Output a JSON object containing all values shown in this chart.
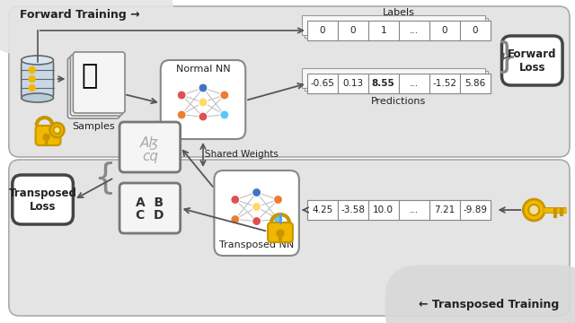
{
  "white": "#ffffff",
  "panel_gray": "#e0e0e0",
  "panel_edge": "#aaaaaa",
  "box_edge": "#888888",
  "text_color": "#222222",
  "gold": "#f0b800",
  "gold_dark": "#c89600",
  "blue_node": "#4472c4",
  "red_node": "#e05050",
  "orange_node": "#ed7d31",
  "yellow_node": "#ffd966",
  "cyan_node": "#5bc8f5",
  "node_edge": "#ffffff",
  "arrow_color": "#555555",
  "forward_training_label": "Forward Training →",
  "transposed_training_label": "← Transposed Training",
  "shared_weights_label": "Shared Weights",
  "normal_nn_label": "Normal NN",
  "transposed_nn_label": "Transposed NN",
  "samples_label": "Samples",
  "labels_label": "Labels",
  "predictions_label": "Predictions",
  "forward_loss_label": "Forward\nLoss",
  "transposed_loss_label": "Transposed\nLoss",
  "labels_values": [
    "0",
    "0",
    "1",
    "...",
    "0",
    "0"
  ],
  "predictions_values": [
    "-0.65",
    "0.13",
    "8.55",
    "...",
    "-1.52",
    "5.86"
  ],
  "key_values": [
    "4.25",
    "-3.58",
    "10.0",
    "...",
    "7.21",
    "-9.89"
  ],
  "pred_bold_idx": 2
}
